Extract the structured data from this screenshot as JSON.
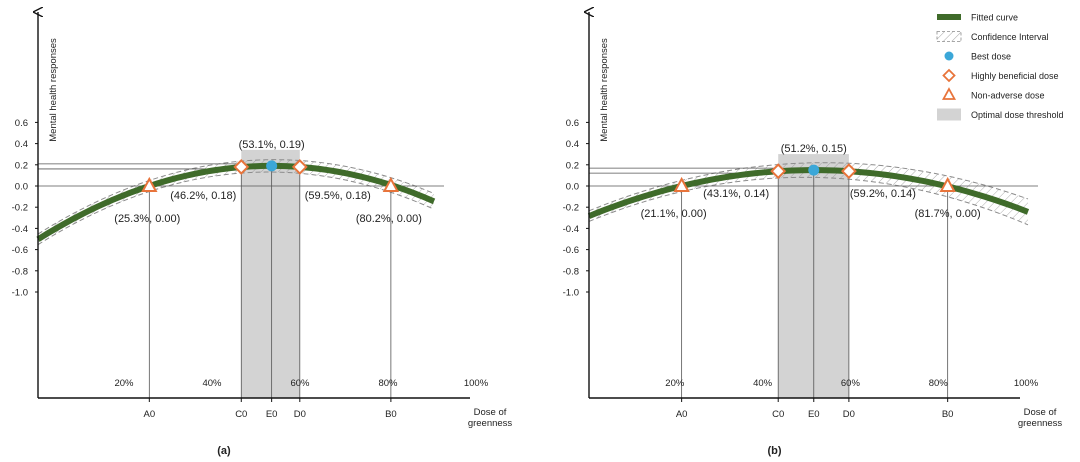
{
  "chart_data": [
    {
      "type": "line",
      "panel_label": "(a)",
      "ylabel": "Mental health responses",
      "xlabel": "Dose of greenness",
      "ylim": [
        -1.0,
        0.8
      ],
      "yticks": [
        "0.6",
        "0.4",
        "0.2",
        "0.0",
        "-0.2",
        "-0.4",
        "-0.6",
        "-0.8",
        "-1.0"
      ],
      "ytick_values": [
        0.6,
        0.4,
        0.2,
        0.0,
        -0.2,
        -0.4,
        -0.6,
        -0.8,
        -1.0
      ],
      "xticks": [
        "20%",
        "40%",
        "60%",
        "80%",
        "100%"
      ],
      "xtick_values": [
        20,
        40,
        60,
        80,
        100
      ],
      "fitted_curve": {
        "x": [
          0,
          90
        ],
        "peak_x": 53.1,
        "peak_y": 0.19,
        "zero_x": 25.3
      },
      "ci_halfwidth": [
        0.05,
        0.06
      ],
      "points": [
        {
          "id": "A0",
          "x": 25.3,
          "y": 0.0,
          "marker": "triangle",
          "label": "(25.3%, 0.00)",
          "tick": "A0"
        },
        {
          "id": "C0",
          "x": 46.2,
          "y": 0.18,
          "marker": "diamond",
          "label": "(46.2%, 0.18)",
          "tick": "C0"
        },
        {
          "id": "E0",
          "x": 53.1,
          "y": 0.19,
          "marker": "circle",
          "label": "(53.1%, 0.19)",
          "tick": "E0"
        },
        {
          "id": "D0",
          "x": 59.5,
          "y": 0.18,
          "marker": "diamond",
          "label": "(59.5%, 0.18)",
          "tick": "D0"
        },
        {
          "id": "B0",
          "x": 80.2,
          "y": 0.0,
          "marker": "triangle",
          "label": "(80.2%, 0.00)",
          "tick": "B0"
        }
      ],
      "threshold_band": [
        46.2,
        59.5
      ]
    },
    {
      "type": "line",
      "panel_label": "(b)",
      "ylabel": "Mental health responses",
      "xlabel": "Dose of greenness",
      "ylim": [
        -1.0,
        0.8
      ],
      "yticks": [
        "0.6",
        "0.4",
        "0.2",
        "0.0",
        "-0.2",
        "-0.4",
        "-0.6",
        "-0.8",
        "-1.0"
      ],
      "ytick_values": [
        0.6,
        0.4,
        0.2,
        0.0,
        -0.2,
        -0.4,
        -0.6,
        -0.8,
        -1.0
      ],
      "xticks": [
        "20%",
        "40%",
        "60%",
        "80%",
        "100%"
      ],
      "xtick_values": [
        20,
        40,
        60,
        80,
        100
      ],
      "fitted_curve": {
        "x": [
          0,
          100
        ],
        "peak_x": 51.2,
        "peak_y": 0.15,
        "zero_x": 21.1
      },
      "ci_halfwidth": [
        0.05,
        0.08
      ],
      "points": [
        {
          "id": "A0",
          "x": 21.1,
          "y": 0.0,
          "marker": "triangle",
          "label": "(21.1%, 0.00)",
          "tick": "A0"
        },
        {
          "id": "C0",
          "x": 43.1,
          "y": 0.14,
          "marker": "diamond",
          "label": "(43.1%, 0.14)",
          "tick": "C0"
        },
        {
          "id": "E0",
          "x": 51.2,
          "y": 0.15,
          "marker": "circle",
          "label": "(51.2%, 0.15)",
          "tick": "E0"
        },
        {
          "id": "D0",
          "x": 59.2,
          "y": 0.14,
          "marker": "diamond",
          "label": "(59.2%, 0.14)",
          "tick": "D0"
        },
        {
          "id": "B0",
          "x": 81.7,
          "y": 0.0,
          "marker": "triangle",
          "label": "(81.7%, 0.00)",
          "tick": "B0"
        }
      ],
      "threshold_band": [
        43.1,
        59.2
      ]
    }
  ],
  "legend": {
    "placement": "top-right",
    "items": [
      {
        "label": "Fitted curve",
        "kind": "line"
      },
      {
        "label": "Confidence Interval",
        "kind": "hatch"
      },
      {
        "label": "Best dose",
        "kind": "circle"
      },
      {
        "label": "Highly beneficial dose",
        "kind": "diamond"
      },
      {
        "label": "Non-adverse dose",
        "kind": "triangle"
      },
      {
        "label": "Optimal dose threshold",
        "kind": "band"
      }
    ]
  },
  "colors": {
    "curve": "#3f6b2a",
    "best": "#3ba7d8",
    "diamond": "#e8743b",
    "triangle": "#e8743b",
    "band": "#d3d3d3",
    "hatch": "#8c8c8c",
    "axis": "#111111",
    "guide": "#555555"
  }
}
